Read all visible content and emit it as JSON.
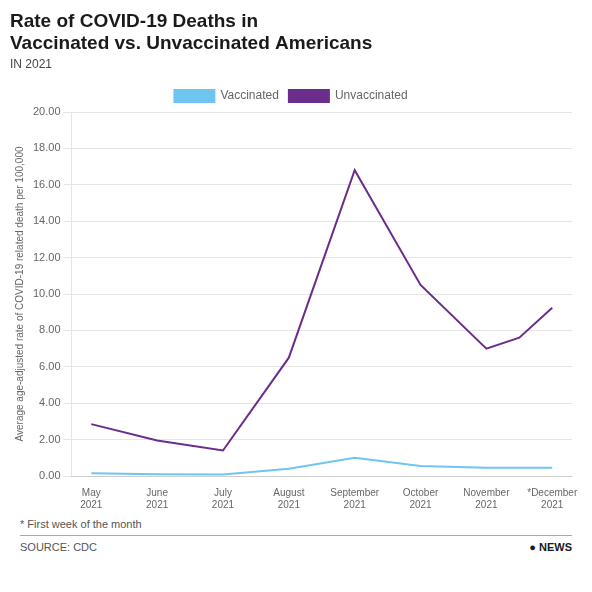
{
  "chart_data": {
    "type": "line",
    "title": [
      "Rate of COVID-19 Deaths in",
      "Vaccinated vs. Unvaccinated Americans"
    ],
    "subtitle": "IN 2021",
    "ylabel": "Average age-adjusted rate of COVID-19 related death per 100,000",
    "xlim": [
      -0.3,
      7.3
    ],
    "xticks": [
      {
        "value": 0,
        "label": "May\n2021"
      },
      {
        "value": 1,
        "label": "June\n2021"
      },
      {
        "value": 2,
        "label": "July\n2021"
      },
      {
        "value": 3,
        "label": "August\n2021"
      },
      {
        "value": 4,
        "label": "September\n2021"
      },
      {
        "value": 5,
        "label": "October\n2021"
      },
      {
        "value": 6,
        "label": "November\n2021"
      },
      {
        "value": 7,
        "label": "*December\n2021"
      }
    ],
    "ylim": [
      0,
      20.0
    ],
    "yticks": [
      {
        "value": 0.0,
        "label": "0.00"
      },
      {
        "value": 2.0,
        "label": "2.00"
      },
      {
        "value": 4.0,
        "label": "4.00"
      },
      {
        "value": 6.0,
        "label": "6.00"
      },
      {
        "value": 8.0,
        "label": "8.00"
      },
      {
        "value": 10.0,
        "label": "10.00"
      },
      {
        "value": 12.0,
        "label": "12.00"
      },
      {
        "value": 14.0,
        "label": "14.00"
      },
      {
        "value": 16.0,
        "label": "16.00"
      },
      {
        "value": 18.0,
        "label": "18.00"
      },
      {
        "value": 20.0,
        "label": "20.00"
      }
    ],
    "series": [
      {
        "name": "Vaccinated",
        "color": "#6ec6f0",
        "x": [
          0,
          1,
          2,
          3,
          4,
          5,
          6,
          7
        ],
        "values": [
          0.15,
          0.1,
          0.08,
          0.4,
          1.0,
          0.55,
          0.45,
          0.45
        ]
      },
      {
        "name": "Unvaccinated",
        "color": "#6b2d8b",
        "x": [
          0,
          1,
          2,
          3,
          4,
          5,
          6,
          6.5,
          7
        ],
        "values": [
          2.85,
          1.95,
          1.4,
          6.5,
          16.8,
          10.5,
          7.0,
          7.6,
          9.25
        ]
      }
    ],
    "grid": "y",
    "legend": "top",
    "annotations": [
      "* First week of the month",
      "SOURCE: CDC",
      "● NEWS"
    ]
  }
}
